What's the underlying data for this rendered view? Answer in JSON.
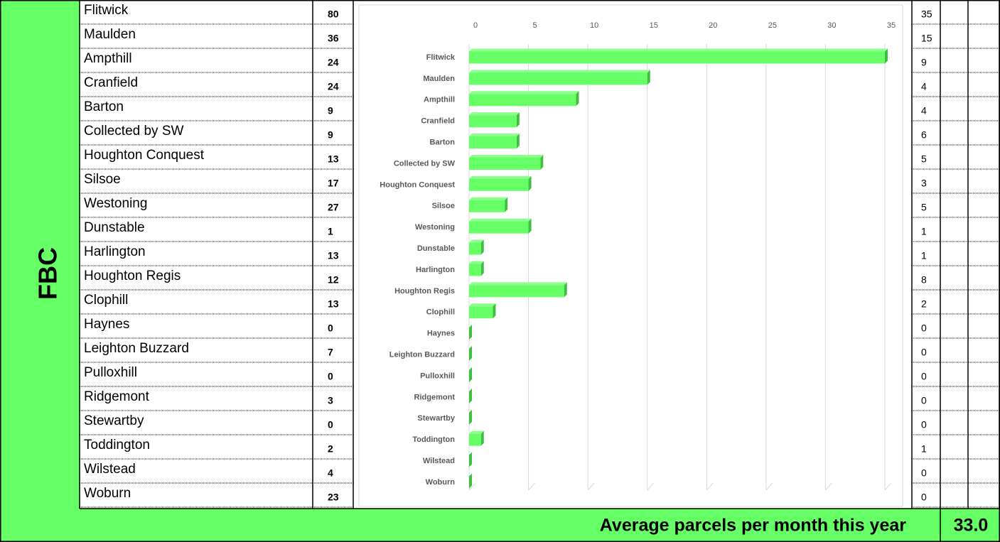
{
  "table": {
    "group": "FBC",
    "totals": [
      80,
      36,
      24,
      24,
      9,
      9,
      13,
      17,
      27,
      1,
      13,
      12,
      13,
      0,
      7,
      0,
      3,
      0,
      2,
      4,
      23
    ],
    "footer": {
      "label": "Average parcels per month this year",
      "value": "33.0"
    }
  },
  "chart_data": {
    "type": "bar",
    "orientation": "horizontal",
    "categories": [
      "Flitwick",
      "Maulden",
      "Ampthill",
      "Cranfield",
      "Barton",
      "Collected by SW",
      "Houghton Conquest",
      "Silsoe",
      "Westoning",
      "Dunstable",
      "Harlington",
      "Houghton Regis",
      "Clophill",
      "Haynes",
      "Leighton Buzzard",
      "Pulloxhill",
      "Ridgemont",
      "Stewartby",
      "Toddington",
      "Wilstead",
      "Woburn"
    ],
    "values": [
      35,
      15,
      9,
      4,
      4,
      6,
      5,
      3,
      5,
      1,
      1,
      8,
      2,
      0,
      0,
      0,
      0,
      0,
      1,
      0,
      0
    ],
    "color": "#66ff66",
    "xlim": [
      0,
      35
    ],
    "xticks": [
      0,
      5,
      10,
      15,
      20,
      25,
      30,
      35
    ],
    "grid": true
  }
}
